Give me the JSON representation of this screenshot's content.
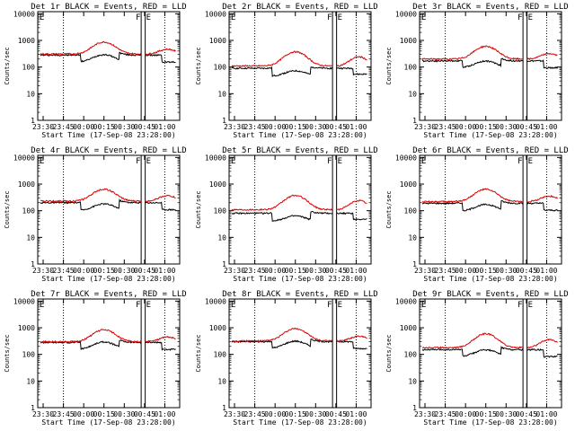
{
  "chart_data": [
    {
      "type": "line",
      "title": "Det 1r BLACK = Events, RED = LLD",
      "xlabel": "Start Time (17-Sep-08 23:28:00)",
      "ylabel": "Counts/sec",
      "markers": {
        "F": "F",
        "E": "E"
      },
      "x_ticks": [
        "23:30",
        "23:45",
        "00:00",
        "00:15",
        "00:30",
        "00:45",
        "01:00"
      ],
      "y_ticks": [
        "1",
        "10",
        "100",
        "1000",
        "10000"
      ],
      "ylim": [
        1,
        12000
      ],
      "xlim_min": [
        -2,
        103
      ],
      "series": [
        {
          "color": "#000000",
          "base": 280,
          "peak": 1.9,
          "dip": [
            [
              30,
              58,
              0.55
            ],
            [
              90,
              100,
              0.55
            ]
          ]
        },
        {
          "color": "#dd0000",
          "base": 310,
          "peak": 2.8,
          "dip": [
            [
              80,
              100,
              1.5
            ]
          ]
        }
      ]
    },
    {
      "type": "line",
      "title": "Det 2r BLACK = Events, RED = LLD",
      "xlabel": "Start Time (17-Sep-08 23:28:00)",
      "ylabel": "Counts/sec",
      "markers": {
        "F": "F",
        "E": "E"
      },
      "x_ticks": [
        "23:30",
        "23:45",
        "00:00",
        "00:15",
        "00:30",
        "00:45",
        "01:00"
      ],
      "y_ticks": [
        "1",
        "10",
        "100",
        "1000",
        "10000"
      ],
      "ylim": [
        1,
        12000
      ],
      "xlim_min": [
        -2,
        103
      ],
      "series": [
        {
          "color": "#000000",
          "base": 90,
          "peak": 1.6,
          "dip": [
            [
              30,
              58,
              0.5
            ],
            [
              90,
              100,
              0.6
            ]
          ]
        },
        {
          "color": "#dd0000",
          "base": 110,
          "peak": 3.4,
          "dip": [
            [
              80,
              100,
              2.2
            ]
          ]
        }
      ]
    },
    {
      "type": "line",
      "title": "Det 3r BLACK = Events, RED = LLD",
      "xlabel": "Start Time (17-Sep-08 23:28:00)",
      "ylabel": "Counts/sec",
      "markers": {
        "F": "F",
        "E": "E"
      },
      "x_ticks": [
        "23:30",
        "23:45",
        "00:00",
        "00:15",
        "00:30",
        "00:45",
        "01:00"
      ],
      "y_ticks": [
        "1",
        "10",
        "100",
        "1000",
        "10000"
      ],
      "ylim": [
        1,
        12000
      ],
      "xlim_min": [
        -2,
        103
      ],
      "series": [
        {
          "color": "#000000",
          "base": 170,
          "peak": 1.8,
          "dip": [
            [
              30,
              58,
              0.55
            ],
            [
              90,
              100,
              0.55
            ]
          ]
        },
        {
          "color": "#dd0000",
          "base": 200,
          "peak": 3.0,
          "dip": [
            [
              80,
              100,
              1.6
            ]
          ]
        }
      ]
    },
    {
      "type": "line",
      "title": "Det 4r BLACK = Events, RED = LLD",
      "xlabel": "Start Time (17-Sep-08 23:28:00)",
      "ylabel": "Counts/sec",
      "markers": {
        "F": "F",
        "E": "E"
      },
      "x_ticks": [
        "23:30",
        "23:45",
        "00:00",
        "00:15",
        "00:30",
        "00:45",
        "01:00"
      ],
      "y_ticks": [
        "1",
        "10",
        "100",
        "1000",
        "10000"
      ],
      "ylim": [
        1,
        12000
      ],
      "xlim_min": [
        -2,
        103
      ],
      "series": [
        {
          "color": "#000000",
          "base": 200,
          "peak": 1.8,
          "dip": [
            [
              30,
              58,
              0.5
            ],
            [
              90,
              100,
              0.55
            ]
          ]
        },
        {
          "color": "#dd0000",
          "base": 230,
          "peak": 2.8,
          "dip": [
            [
              80,
              100,
              1.6
            ]
          ]
        }
      ]
    },
    {
      "type": "line",
      "title": "Det 5r BLACK = Events, RED = LLD",
      "xlabel": "Start Time (17-Sep-08 23:28:00)",
      "ylabel": "Counts/sec",
      "markers": {
        "F": "F",
        "E": "E"
      },
      "x_ticks": [
        "23:30",
        "23:45",
        "00:00",
        "00:15",
        "00:30",
        "00:45",
        "01:00"
      ],
      "y_ticks": [
        "1",
        "10",
        "100",
        "1000",
        "10000"
      ],
      "ylim": [
        1,
        12000
      ],
      "xlim_min": [
        -2,
        103
      ],
      "series": [
        {
          "color": "#000000",
          "base": 80,
          "peak": 1.6,
          "dip": [
            [
              30,
              58,
              0.5
            ],
            [
              90,
              100,
              0.6
            ]
          ]
        },
        {
          "color": "#dd0000",
          "base": 110,
          "peak": 3.4,
          "dip": [
            [
              80,
              100,
              2.2
            ]
          ]
        }
      ]
    },
    {
      "type": "line",
      "title": "Det 6r BLACK = Events, RED = LLD",
      "xlabel": "Start Time (17-Sep-08 23:28:00)",
      "ylabel": "Counts/sec",
      "markers": {
        "F": "F",
        "E": "E"
      },
      "x_ticks": [
        "23:30",
        "23:45",
        "00:00",
        "00:15",
        "00:30",
        "00:45",
        "01:00"
      ],
      "y_ticks": [
        "1",
        "10",
        "100",
        "1000",
        "10000"
      ],
      "ylim": [
        1,
        12000
      ],
      "xlim_min": [
        -2,
        103
      ],
      "series": [
        {
          "color": "#000000",
          "base": 190,
          "peak": 1.8,
          "dip": [
            [
              30,
              58,
              0.5
            ],
            [
              90,
              100,
              0.55
            ]
          ]
        },
        {
          "color": "#dd0000",
          "base": 220,
          "peak": 2.9,
          "dip": [
            [
              80,
              100,
              1.6
            ]
          ]
        }
      ]
    },
    {
      "type": "line",
      "title": "Det 7r BLACK = Events, RED = LLD",
      "xlabel": "Start Time (17-Sep-08 23:28:00)",
      "ylabel": "Counts/sec",
      "markers": {
        "F": "F",
        "E": "E"
      },
      "x_ticks": [
        "23:30",
        "23:45",
        "00:00",
        "00:15",
        "00:30",
        "00:45",
        "01:00"
      ],
      "y_ticks": [
        "1",
        "10",
        "100",
        "1000",
        "10000"
      ],
      "ylim": [
        1,
        12000
      ],
      "xlim_min": [
        -2,
        103
      ],
      "series": [
        {
          "color": "#000000",
          "base": 280,
          "peak": 1.9,
          "dip": [
            [
              30,
              58,
              0.55
            ],
            [
              90,
              100,
              0.55
            ]
          ]
        },
        {
          "color": "#dd0000",
          "base": 300,
          "peak": 2.8,
          "dip": [
            [
              80,
              100,
              1.5
            ]
          ]
        }
      ]
    },
    {
      "type": "line",
      "title": "Det 8r BLACK = Events, RED = LLD",
      "xlabel": "Start Time (17-Sep-08 23:28:00)",
      "ylabel": "Counts/sec",
      "markers": {
        "F": "F",
        "E": "E"
      },
      "x_ticks": [
        "23:30",
        "23:45",
        "00:00",
        "00:15",
        "00:30",
        "00:45",
        "01:00"
      ],
      "y_ticks": [
        "1",
        "10",
        "100",
        "1000",
        "10000"
      ],
      "ylim": [
        1,
        12000
      ],
      "xlim_min": [
        -2,
        103
      ],
      "series": [
        {
          "color": "#000000",
          "base": 300,
          "peak": 1.9,
          "dip": [
            [
              30,
              58,
              0.55
            ],
            [
              90,
              100,
              0.55
            ]
          ]
        },
        {
          "color": "#dd0000",
          "base": 320,
          "peak": 2.9,
          "dip": [
            [
              80,
              100,
              1.5
            ]
          ]
        }
      ]
    },
    {
      "type": "line",
      "title": "Det 9r BLACK = Events, RED = LLD",
      "xlabel": "Start Time (17-Sep-08 23:28:00)",
      "ylabel": "Counts/sec",
      "markers": {
        "F": "F",
        "E": "E"
      },
      "x_ticks": [
        "23:30",
        "23:45",
        "00:00",
        "00:15",
        "00:30",
        "00:45",
        "01:00"
      ],
      "y_ticks": [
        "1",
        "10",
        "100",
        "1000",
        "10000"
      ],
      "ylim": [
        1,
        12000
      ],
      "xlim_min": [
        -2,
        103
      ],
      "series": [
        {
          "color": "#000000",
          "base": 150,
          "peak": 1.8,
          "dip": [
            [
              30,
              58,
              0.55
            ],
            [
              90,
              100,
              0.55
            ]
          ]
        },
        {
          "color": "#dd0000",
          "base": 180,
          "peak": 3.3,
          "dip": [
            [
              80,
              100,
              2.0
            ]
          ]
        }
      ]
    }
  ]
}
